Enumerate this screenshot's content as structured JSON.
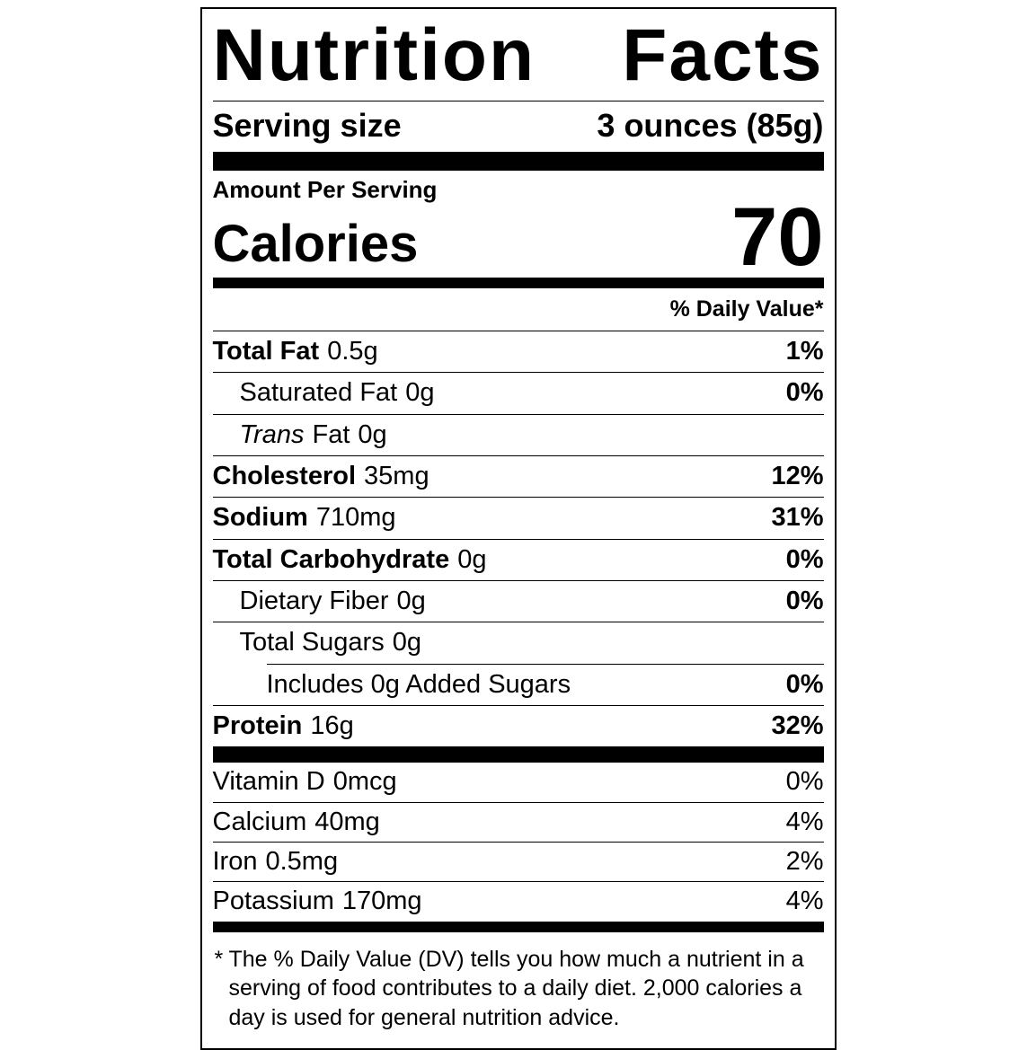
{
  "label": {
    "title": "Nutrition Facts",
    "serving_size": {
      "label": "Serving size",
      "value": "3 ounces (85g)"
    },
    "amount_per_serving_label": "Amount Per Serving",
    "calories_label": "Calories",
    "calories_value": "70",
    "daily_value_header": "% Daily Value*",
    "nutrients": [
      {
        "name": "Total Fat",
        "amount": "0.5g",
        "dv": "1%"
      },
      {
        "name": "Saturated Fat",
        "amount": "0g",
        "dv": "0%"
      },
      {
        "name_italic": "Trans",
        "name": "Fat",
        "amount": "0g"
      },
      {
        "name": "Cholesterol",
        "amount": "35mg",
        "dv": "12%"
      },
      {
        "name": "Sodium",
        "amount": "710mg",
        "dv": "31%"
      },
      {
        "name": "Total Carbohydrate",
        "amount": "0g",
        "dv": "0%"
      },
      {
        "name": "Dietary Fiber",
        "amount": "0g",
        "dv": "0%"
      },
      {
        "name": "Total Sugars",
        "amount": "0g"
      },
      {
        "name": "Includes 0g Added Sugars",
        "dv": "0%"
      },
      {
        "name": "Protein",
        "amount": "16g",
        "dv": "32%"
      }
    ],
    "vitamins": [
      {
        "name": "Vitamin D",
        "amount": "0mcg",
        "dv": "0%"
      },
      {
        "name": "Calcium",
        "amount": "40mg",
        "dv": "4%"
      },
      {
        "name": "Iron",
        "amount": "0.5mg",
        "dv": "2%"
      },
      {
        "name": "Potassium",
        "amount": "170mg",
        "dv": "4%"
      }
    ],
    "footnote_marker": "*",
    "footnote": "The % Daily Value (DV) tells you how much a nutrient in a serving of food contributes to a daily diet. 2,000 calories a day is used for general nutrition advice."
  }
}
